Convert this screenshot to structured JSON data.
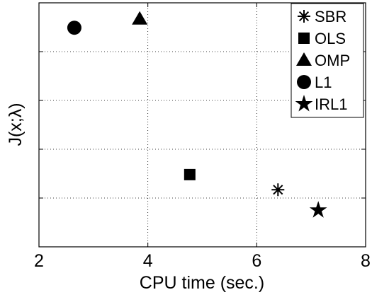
{
  "chart_data": {
    "type": "scatter",
    "xlabel": "CPU time (sec.)",
    "ylabel": "J(x;λ)",
    "xlim": [
      2,
      8
    ],
    "xticks": [
      2,
      4,
      6,
      8
    ],
    "ylim": [
      0,
      5
    ],
    "yticks": [
      1,
      2,
      3,
      4
    ],
    "grid": true,
    "legend": "upper right",
    "series": [
      {
        "name": "SBR",
        "marker": "asterisk",
        "color": "#000000",
        "x": [
          6.39
        ],
        "values": [
          1.17
        ]
      },
      {
        "name": "OLS",
        "marker": "square",
        "color": "#000000",
        "x": [
          4.77
        ],
        "values": [
          1.48
        ]
      },
      {
        "name": "OMP",
        "marker": "triangle",
        "color": "#000000",
        "x": [
          3.85
        ],
        "values": [
          4.67
        ]
      },
      {
        "name": "L1",
        "marker": "circle",
        "color": "#000000",
        "x": [
          2.65
        ],
        "values": [
          4.49
        ]
      },
      {
        "name": "IRL1",
        "marker": "star",
        "color": "#000000",
        "x": [
          7.13
        ],
        "values": [
          0.75
        ]
      }
    ]
  }
}
